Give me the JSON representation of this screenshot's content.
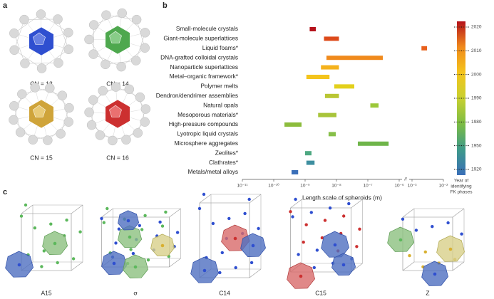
{
  "panel_labels": [
    "a",
    "b",
    "c"
  ],
  "coordination": [
    "CN = 12",
    "CN = 14",
    "CN = 15",
    "CN = 16"
  ],
  "chart_data": {
    "type": "range_bar",
    "categories": [
      "Small-molecule crystals",
      "Giant-molecule superlattices",
      "Liquid foams*",
      "DNA-grafted colloidal crystals",
      "Nanoparticle superlattices",
      "Metal–organic framework*",
      "Polymer melts",
      "Dendron/dendrimer assemblies",
      "Natural opals",
      "Mesoporous materials*",
      "High-pressure compounds",
      "Lyotropic liquid crystals",
      "Microsphere aggregates",
      "Zeolites*",
      "Clathrates*",
      "Metals/metal alloys"
    ],
    "values": [
      [
        1.4e-09,
        2.2e-09
      ],
      [
        4e-09,
        1.2e-08
      ],
      [
        0.002,
        0.003
      ],
      [
        4.8e-09,
        3e-07
      ],
      [
        3.2e-09,
        1.2e-08
      ],
      [
        1.1e-09,
        6e-09
      ],
      [
        8.5e-09,
        3.7e-08
      ],
      [
        4.3e-09,
        1.2e-08
      ],
      [
        1.2e-07,
        2.2e-07
      ],
      [
        2.6e-09,
        1e-08
      ],
      [
        2.2e-10,
        7.7e-10
      ],
      [
        5.6e-09,
        9.5e-09
      ],
      [
        4.8e-08,
        4.6e-07
      ],
      [
        1e-09,
        1.6e-09
      ],
      [
        1.1e-09,
        2e-09
      ],
      [
        3.7e-10,
        6e-10
      ]
    ],
    "colors": [
      "#b5121b",
      "#dd4a1a",
      "#e8601c",
      "#f08a1c",
      "#f5b21c",
      "#f4c41c",
      "#e3d01c",
      "#b9c633",
      "#9cc83a",
      "#a8c43a",
      "#8cbc3c",
      "#86bf48",
      "#6fb54a",
      "#4ea882",
      "#3e8fa0",
      "#3a6fb8"
    ],
    "xscale": "log",
    "xlim": [
      1e-11,
      0.01
    ],
    "axis_break": [
      1e-06,
      0.001
    ],
    "xticks": [
      {
        "value": 1e-11,
        "label": "10⁻¹¹"
      },
      {
        "value": 1e-10,
        "label": "10⁻¹⁰"
      },
      {
        "value": 1e-09,
        "label": "10⁻⁹"
      },
      {
        "value": 1e-08,
        "label": "10⁻⁸"
      },
      {
        "value": 1e-07,
        "label": "10⁻⁷"
      },
      {
        "value": 1e-06,
        "label": "10⁻⁶"
      },
      {
        "value": 0.001,
        "label": "10⁻³"
      },
      {
        "value": 0.01,
        "label": "10⁻²"
      }
    ],
    "xlabel": "Length scale of spheroids (m)",
    "colorbar": {
      "ticks": [
        1920,
        1950,
        1980,
        1990,
        2000,
        2010,
        2020
      ],
      "colors": [
        "#3a6fb8",
        "#3e9a8a",
        "#7cbc44",
        "#c8d030",
        "#f4c41c",
        "#f08a1c",
        "#b5121b"
      ],
      "label": [
        "Year of",
        "identifying",
        "FK phases"
      ]
    }
  },
  "structures": [
    "A15",
    "σ",
    "C14",
    "C15",
    "Z"
  ]
}
